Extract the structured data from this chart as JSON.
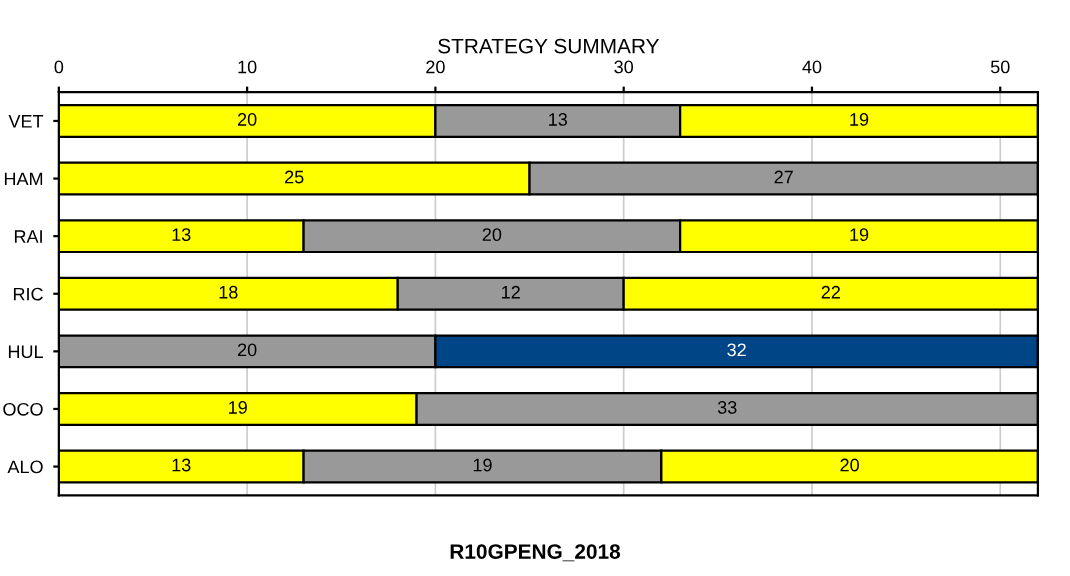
{
  "chart_data": {
    "type": "bar",
    "orientation": "horizontal",
    "stacked": true,
    "title": "STRATEGY SUMMARY",
    "categories": [
      "VET",
      "HAM",
      "RAI",
      "RIC",
      "HUL",
      "OCO",
      "ALO"
    ],
    "series": [
      {
        "colors": [
          "#ffff00",
          "#ffff00",
          "#ffff00",
          "#ffff00",
          "#999999",
          "#ffff00",
          "#ffff00"
        ],
        "values": [
          20,
          25,
          13,
          18,
          20,
          19,
          13
        ]
      },
      {
        "colors": [
          "#999999",
          "#999999",
          "#999999",
          "#999999",
          "#004586",
          "#999999",
          "#999999"
        ],
        "values": [
          13,
          27,
          20,
          12,
          32,
          33,
          19
        ]
      },
      {
        "colors": [
          "#ffff00",
          null,
          "#ffff00",
          "#ffff00",
          null,
          null,
          "#ffff00"
        ],
        "values": [
          19,
          null,
          19,
          22,
          null,
          null,
          20
        ]
      }
    ],
    "xlim": [
      0,
      52
    ],
    "xticks": [
      0,
      10,
      20,
      30,
      40,
      50
    ],
    "grid": "x",
    "data_labels": true,
    "legend": false,
    "annotations": [
      "R10GPENG_2018"
    ]
  }
}
